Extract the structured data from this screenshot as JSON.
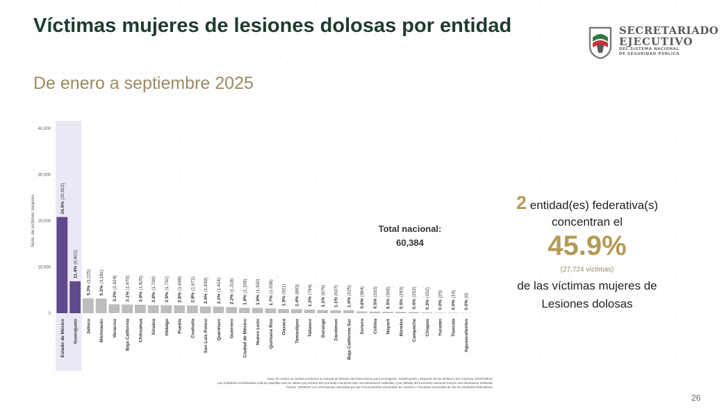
{
  "title": "Víctimas mujeres de lesiones dolosas por entidad",
  "subtitle": "De enero a septiembre 2025",
  "logo": {
    "line1": "SECRETARIADO",
    "line2": "EJECUTIVO",
    "line3": "DEL SISTEMA NACIONAL",
    "line4": "DE SEGURIDAD PÚBLICA"
  },
  "total": {
    "label": "Total nacional:",
    "value": "60,384"
  },
  "summary": {
    "count": "2",
    "line1": "entidad(es)  federativa(s)",
    "line2": "concentran el",
    "percent": "45.9%",
    "victims": "(27,724  víctimas)",
    "line3": "de las  víctimas  mujeres de",
    "line4": "Lesiones dolosas"
  },
  "note": {
    "line1": "Nota: El conteo se realiza conforme al manual de llenado del Instrumento para el Registro, Clasificación y Reporte de los Delitos y las Víctimas CNSP/38/15.",
    "line2": "Las entidades sombreadas indican aquellas que se sitúan por encima del promedio nacional más una desviación estándar o por debajo del promedio nacional menos una desviación estándar.",
    "line3": "Fuente: SESNSP con información reportada por las Procuradurías Generales de Justicia o Fiscalías Generales de las 32 entidades federativas."
  },
  "page_number": "26",
  "colors": {
    "highlight_bar": "#5e4a8c",
    "normal_bar": "#bdbdbd",
    "highlight_band": "#ebe8f6",
    "accent_gold": "#b59a55",
    "title_green": "#1f3b2d"
  },
  "chart_data": {
    "type": "bar",
    "ylabel": "Núm. de víctimas mujeres",
    "ylim": [
      0,
      40000
    ],
    "yticks": [
      0,
      10000,
      20000,
      30000,
      40000
    ],
    "ytick_labels": [
      "0",
      "10,000",
      "20,000",
      "30,000",
      "40,000"
    ],
    "categories": [
      "Estado de México",
      "Guanajuato",
      "Jalisco",
      "Michoacán",
      "Veracruz",
      "Baja California",
      "Chihuahua",
      "Sinaloa",
      "Hidalgo",
      "Puebla",
      "Coahuila",
      "San Luis Potosí",
      "Querétaro",
      "Guerrero",
      "Ciudad de México",
      "Nuevo León",
      "Quintana Roo",
      "Oaxaca",
      "Tamaulipas",
      "Tabasco",
      "Durango",
      "Zacatecas",
      "Baja California Sur",
      "Sonora",
      "Colima",
      "Nayarit",
      "Morelos",
      "Campeche",
      "Chiapas",
      "Yucatán",
      "Tlaxcala",
      "Aguascalientes"
    ],
    "values": [
      20822,
      6902,
      3225,
      3181,
      1924,
      1870,
      1825,
      1734,
      1732,
      1698,
      1671,
      1439,
      1414,
      1318,
      1166,
      1150,
      1036,
      921,
      863,
      794,
      675,
      637,
      625,
      384,
      332,
      305,
      293,
      252,
      152,
      25,
      19,
      0
    ],
    "labels": [
      "34.5% (20,822)",
      "11.4% (6,902)",
      "5.3% (3,225)",
      "5.3% (3,181)",
      "3.2% (1,924)",
      "3.1% (1,870)",
      "3.0% (1,825)",
      "2.9% (1,734)",
      "2.9% (1,732)",
      "2.8% (1,698)",
      "2.8% (1,671)",
      "2.4% (1,439)",
      "2.3% (1,414)",
      "2.2% (1,318)",
      "1.9% (1,166)",
      "1.9% (1,150)",
      "1.7% (1,036)",
      "1.5% (921)",
      "1.4% (863)",
      "1.3% (794)",
      "1.1% (675)",
      "1.1% (637)",
      "1.0% (625)",
      "0.6% (384)",
      "0.5% (332)",
      "0.5% (305)",
      "0.5% (293)",
      "0.4% (252)",
      "0.3% (152)",
      "0.0% (25)",
      "0.0% (19)",
      "0.0% (0)"
    ],
    "highlighted": [
      0,
      1
    ]
  }
}
